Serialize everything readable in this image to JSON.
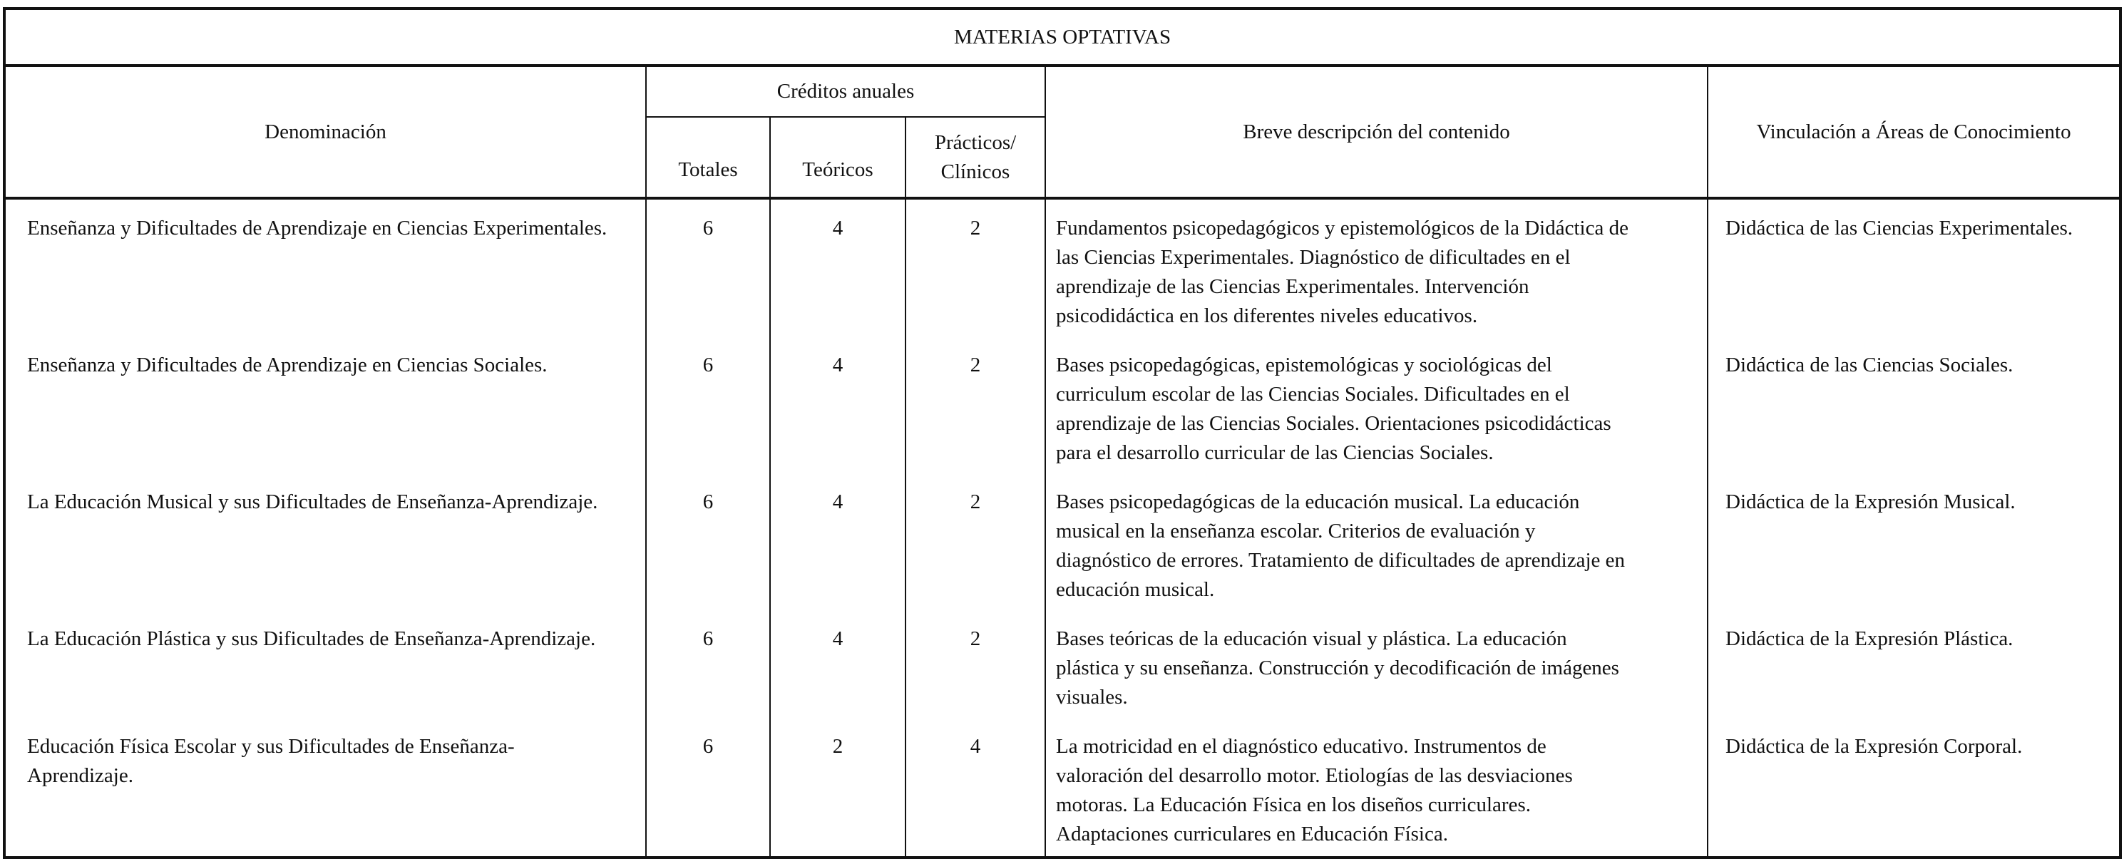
{
  "title": "MATERIAS OPTATIVAS",
  "headers": {
    "denominacion": "Denominación",
    "creditos": "Créditos anuales",
    "totales": "Totales",
    "teoricos": "Teóricos",
    "practicos": "Prácticos/\nClínicos",
    "descripcion": "Breve descripción del contenido",
    "vinculacion": "Vinculación a Áreas de Conocimiento"
  },
  "rows": [
    {
      "denominacion": "Enseñanza y Dificultades de Aprendizaje en Ciencias Experimentales.",
      "totales": "6",
      "teoricos": "4",
      "practicos": "2",
      "descripcion": "Fundamentos psicopedagógicos y epistemológicos de la Didáctica de\nlas Ciencias Experimentales. Diagnóstico de dificultades en el\naprendizaje de las Ciencias Experimentales. Intervención\npsicodidáctica en los diferentes niveles educativos.",
      "area": "Didáctica de las Ciencias Experimentales."
    },
    {
      "denominacion": "Enseñanza y Dificultades de Aprendizaje en Ciencias Sociales.",
      "totales": "6",
      "teoricos": "4",
      "practicos": "2",
      "descripcion": "Bases psicopedagógicas, epistemológicas y sociológicas del\ncurriculum escolar de las Ciencias Sociales. Dificultades en el\naprendizaje de las Ciencias Sociales. Orientaciones psicodidácticas\npara el desarrollo curricular de las Ciencias Sociales.",
      "area": "Didáctica de las Ciencias Sociales."
    },
    {
      "denominacion": "La Educación Musical y sus Dificultades de Enseñanza-Aprendizaje.",
      "totales": "6",
      "teoricos": "4",
      "practicos": "2",
      "descripcion": "Bases psicopedagógicas de la educación musical. La educación\nmusical en la enseñanza escolar. Criterios de evaluación y\ndiagnóstico de errores. Tratamiento de dificultades de aprendizaje en\neducación musical.",
      "area": "Didáctica de la Expresión Musical."
    },
    {
      "denominacion": "La Educación Plástica y sus Dificultades de Enseñanza-Aprendizaje.",
      "totales": "6",
      "teoricos": "4",
      "practicos": "2",
      "descripcion": "Bases teóricas de la educación visual y plástica. La educación\nplástica y su enseñanza. Construcción y decodificación de imágenes\nvisuales.",
      "area": "Didáctica de la Expresión Plástica."
    },
    {
      "denominacion": "Educación Física Escolar y sus Dificultades de Enseñanza-Aprendizaje.",
      "totales": "6",
      "teoricos": "2",
      "practicos": "4",
      "descripcion": "La motricidad en el diagnóstico educativo. Instrumentos de\nvaloración del desarrollo motor. Etiologías de las desviaciones\nmotoras. La Educación  Física en los diseños curriculares.\nAdaptaciones curriculares en Educación Física.",
      "area": "Didáctica de la Expresión Corporal."
    }
  ]
}
